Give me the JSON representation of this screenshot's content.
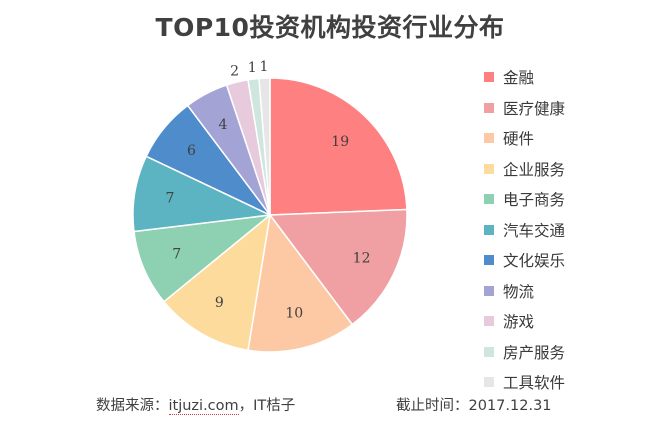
{
  "chart_data": {
    "type": "pie",
    "title": "TOP10投资机构投资行业分布",
    "categories": [
      "金融",
      "医疗健康",
      "硬件",
      "企业服务",
      "电子商务",
      "汽车交通",
      "文化娱乐",
      "物流",
      "游戏",
      "房产服务",
      "工具软件"
    ],
    "values": [
      19,
      12,
      10,
      9,
      7,
      7,
      6,
      4,
      2,
      1,
      1
    ],
    "colors": [
      "#FE8080",
      "#F0A0A3",
      "#FDC8A4",
      "#FDDB9C",
      "#8DD0B2",
      "#5CB3C1",
      "#4F8CCB",
      "#A4A3D6",
      "#E7CADB",
      "#CFE6DE",
      "#E6E6E6"
    ],
    "legend_position": "right",
    "data_labels": true
  },
  "footer": {
    "source_prefix": "数据来源：",
    "source_site": "itjuzi.com",
    "source_suffix": "，IT桔子",
    "date": "截止时间：2017.12.31"
  }
}
